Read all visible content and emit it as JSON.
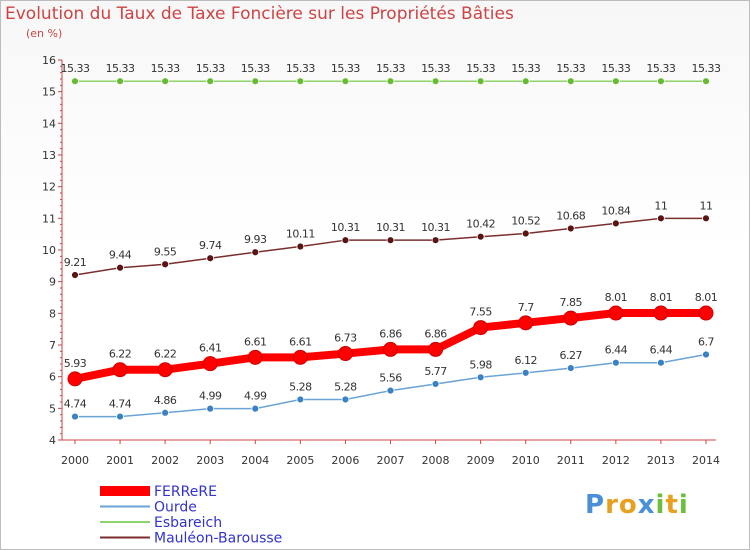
{
  "chart_data": {
    "type": "line",
    "title": "Evolution du Taux de Taxe Foncière sur les Propriétés Bâties",
    "unit_label": "(en %)",
    "x": [
      "2000",
      "2001",
      "2002",
      "2003",
      "2004",
      "2005",
      "2006",
      "2007",
      "2008",
      "2009",
      "2010",
      "2011",
      "2012",
      "2013",
      "2014"
    ],
    "ylim": [
      4,
      16
    ],
    "yticks": [
      "4",
      "5",
      "6",
      "7",
      "8",
      "9",
      "10",
      "11",
      "12",
      "13",
      "14",
      "15",
      "16"
    ],
    "grid": false,
    "legend_position": "bottom-left",
    "series": [
      {
        "name": "FERReRE",
        "color": "#ff0000",
        "marker_color": "#ff0000",
        "emphasis": true,
        "values": [
          5.93,
          6.22,
          6.22,
          6.41,
          6.61,
          6.61,
          6.73,
          6.86,
          6.86,
          7.55,
          7.7,
          7.85,
          8.01,
          8.01,
          8.01
        ],
        "labels": [
          "5.93",
          "6.22",
          "6.22",
          "6.41",
          "6.61",
          "6.61",
          "6.73",
          "6.86",
          "6.86",
          "7.55",
          "7.7",
          "7.85",
          "8.01",
          "8.01",
          "8.01"
        ]
      },
      {
        "name": "Ourde",
        "color": "#6aa3d5",
        "marker_color": "#3b82c4",
        "emphasis": false,
        "values": [
          4.74,
          4.74,
          4.86,
          4.99,
          4.99,
          5.28,
          5.28,
          5.56,
          5.77,
          5.98,
          6.12,
          6.27,
          6.44,
          6.44,
          6.7
        ],
        "labels": [
          "4.74",
          "4.74",
          "4.86",
          "4.99",
          "4.99",
          "5.28",
          "5.28",
          "5.56",
          "5.77",
          "5.98",
          "6.12",
          "6.27",
          "6.44",
          "6.44",
          "6.7"
        ]
      },
      {
        "name": "Esbareich",
        "color": "#8fd46a",
        "marker_color": "#66bb33",
        "emphasis": false,
        "values": [
          15.33,
          15.33,
          15.33,
          15.33,
          15.33,
          15.33,
          15.33,
          15.33,
          15.33,
          15.33,
          15.33,
          15.33,
          15.33,
          15.33,
          15.33
        ],
        "labels": [
          "15.33",
          "15.33",
          "15.33",
          "15.33",
          "15.33",
          "15.33",
          "15.33",
          "15.33",
          "15.33",
          "15.33",
          "15.33",
          "15.33",
          "15.33",
          "15.33",
          "15.33"
        ]
      },
      {
        "name": "Mauléon-Barousse",
        "color": "#7a2e2e",
        "marker_color": "#5a1414",
        "emphasis": false,
        "values": [
          9.21,
          9.44,
          9.55,
          9.74,
          9.93,
          10.11,
          10.31,
          10.31,
          10.31,
          10.42,
          10.52,
          10.68,
          10.84,
          11,
          11
        ],
        "labels": [
          "9.21",
          "9.44",
          "9.55",
          "9.74",
          "9.93",
          "10.11",
          "10.31",
          "10.31",
          "10.31",
          "10.42",
          "10.52",
          "10.68",
          "10.84",
          "11",
          "11"
        ]
      }
    ]
  },
  "branding": {
    "logo_letters": [
      "P",
      "r",
      "o",
      "x",
      "i",
      "t",
      "i"
    ],
    "logo_colors": [
      "#4a90d9",
      "#e8a020",
      "#e8a020",
      "#4a90d9",
      "#6cbf3a",
      "#e8a020",
      "#6cbf3a"
    ]
  }
}
